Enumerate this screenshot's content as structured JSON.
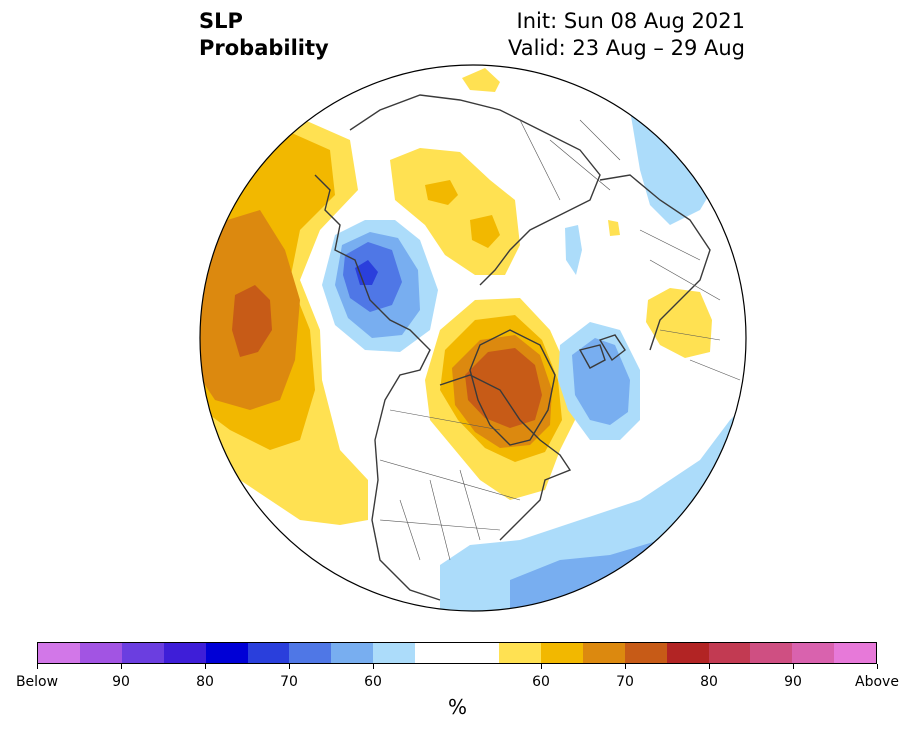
{
  "header": {
    "variable": "SLP",
    "product": "Probability",
    "init": "Init: Sun 08 Aug 2021",
    "valid": "Valid: 23 Aug – 29 Aug"
  },
  "legend": {
    "colors": [
      "#d277e8",
      "#a254e3",
      "#6b3ee0",
      "#3e1ed8",
      "#0000d6",
      "#2a3fdc",
      "#4f77e6",
      "#78aef0",
      "#acdcfa",
      "#ffffff",
      "#ffffff",
      "#ffe152",
      "#f2b800",
      "#dc890f",
      "#c75b17",
      "#b22424",
      "#c23a52",
      "#cf4f82",
      "#d962ae",
      "#e779d9"
    ],
    "tick_labels": [
      "Below",
      "90",
      "80",
      "70",
      "60",
      "60",
      "70",
      "80",
      "90",
      "Above"
    ],
    "tick_positions": [
      0,
      2,
      4,
      6,
      8,
      12,
      14,
      16,
      18,
      20
    ],
    "unit": "%"
  },
  "map": {
    "projection": "north-polar-stereographic",
    "colors": {
      "below_55": "#acdcfa",
      "below_60": "#78aef0",
      "below_65": "#4f77e6",
      "below_70": "#2a3fdc",
      "above_55": "#ffe152",
      "above_60": "#f2b800",
      "above_65": "#dc890f",
      "above_70": "#c75b17",
      "coast": "#3a3a3a",
      "border": "#555555"
    }
  }
}
